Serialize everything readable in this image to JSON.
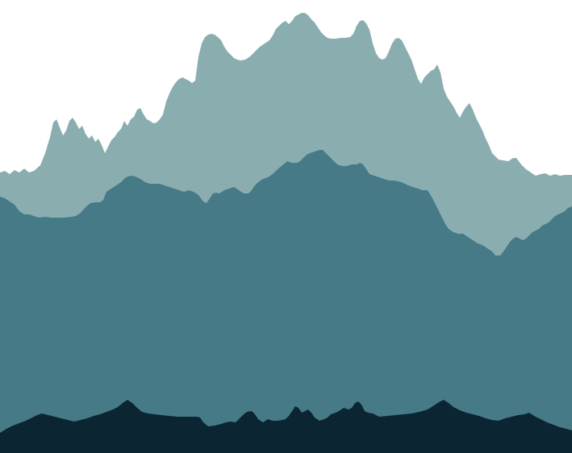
{
  "scene": {
    "background_color": "#ffffff",
    "layers": [
      {
        "name": "far-mountain-ridge",
        "color": "#8aadb0"
      },
      {
        "name": "middle-mountain-ridge",
        "color": "#467a87"
      },
      {
        "name": "near-mountain-ridge",
        "color": "#0b2532"
      }
    ]
  }
}
